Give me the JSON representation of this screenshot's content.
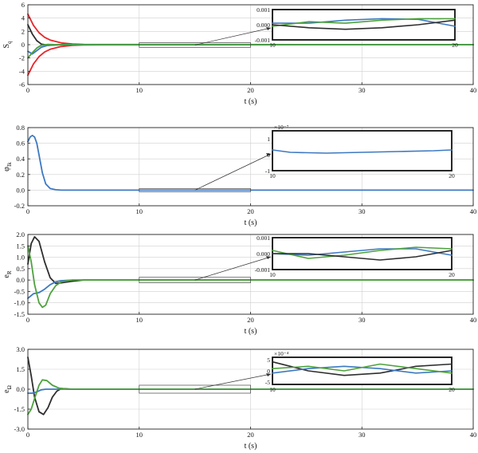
{
  "chart_data": [
    {
      "type": "line",
      "xlabel": "t (s)",
      "ylabel": "S",
      "ylabel_sub": "q",
      "xlim": [
        0,
        40
      ],
      "ylim": [
        -6,
        6
      ],
      "xticks": [
        "0",
        "10",
        "20",
        "30",
        "40"
      ],
      "yticks": [
        "6",
        "4",
        "2",
        "0",
        "-2",
        "-4",
        "-6"
      ],
      "grid": true,
      "series": [
        {
          "color": "#e8262b",
          "x": [
            0,
            0.5,
            1,
            1.5,
            2,
            3,
            4,
            5,
            40
          ],
          "values": [
            4.6,
            2.9,
            1.8,
            1.1,
            0.7,
            0.27,
            0.1,
            0.03,
            0
          ]
        },
        {
          "color": "#e8262b",
          "x": [
            0,
            0.5,
            1,
            1.5,
            2,
            3,
            4,
            5,
            40
          ],
          "values": [
            -4.6,
            -2.9,
            -1.8,
            -1.1,
            -0.7,
            -0.27,
            -0.1,
            -0.03,
            0
          ]
        },
        {
          "color": "#2e2e2e",
          "x": [
            0,
            0.4,
            0.8,
            1.2,
            1.8,
            2.5,
            3.5,
            40
          ],
          "values": [
            3.0,
            1.6,
            0.6,
            0.1,
            -0.1,
            -0.05,
            0,
            0
          ]
        },
        {
          "color": "#3d79c2",
          "x": [
            0,
            0.4,
            0.8,
            1.2,
            1.8,
            2.5,
            3.5,
            40
          ],
          "values": [
            -1.0,
            -1.4,
            -0.9,
            -0.4,
            -0.1,
            0,
            0,
            0
          ]
        },
        {
          "color": "#4da23d",
          "x": [
            0,
            0.4,
            0.8,
            1.2,
            1.8,
            2.5,
            3.5,
            40
          ],
          "values": [
            -2.0,
            -1.2,
            -0.5,
            -0.1,
            0.05,
            0,
            0,
            0
          ]
        }
      ],
      "zoom_x": [
        10,
        20
      ],
      "zoom_y": [
        -0.4,
        0.3
      ],
      "inset": {
        "xlim": [
          10,
          20
        ],
        "ylim": [
          -0.001,
          0.001
        ],
        "xticks": [
          "10",
          "20"
        ],
        "yticks": [
          "0.001",
          "0.000",
          "-0.001"
        ],
        "series": [
          {
            "color": "#3d79c2",
            "x": [
              10,
              12,
              14,
              16,
              18,
              20
            ],
            "values": [
              0.0001,
              0.0001,
              0.0003,
              0.0004,
              0.00035,
              -0.0001
            ]
          },
          {
            "color": "#4da23d",
            "x": [
              10,
              12,
              14,
              16,
              18,
              20
            ],
            "values": [
              -0.0001,
              0.0002,
              0.0001,
              0.0003,
              0.0004,
              0.0004
            ]
          },
          {
            "color": "#2e2e2e",
            "x": [
              10,
              12,
              14,
              16,
              18,
              20
            ],
            "values": [
              0,
              -0.0002,
              -0.0003,
              -0.0002,
              0,
              0.0003
            ]
          }
        ]
      }
    },
    {
      "type": "line",
      "xlabel": "t (s)",
      "ylabel": "φ",
      "ylabel_sub": "Ik",
      "xlim": [
        0,
        40
      ],
      "ylim": [
        -0.2,
        0.8
      ],
      "xticks": [
        "0",
        "10",
        "20",
        "30",
        "40"
      ],
      "yticks": [
        "0.8",
        "0.6",
        "0.4",
        "0.2",
        "0.0",
        "-0.2"
      ],
      "grid": true,
      "series": [
        {
          "color": "#3d79c2",
          "x": [
            0,
            0.2,
            0.4,
            0.6,
            0.8,
            1.0,
            1.3,
            1.6,
            2.0,
            2.5,
            3.0,
            40
          ],
          "values": [
            0.62,
            0.68,
            0.7,
            0.68,
            0.6,
            0.45,
            0.22,
            0.08,
            0.02,
            0.005,
            0,
            0
          ]
        }
      ],
      "zoom_x": [
        10,
        20
      ],
      "zoom_y": [
        -0.02,
        0.02
      ],
      "inset": {
        "xlim": [
          10,
          20
        ],
        "ylim": [
          -1,
          1.5
        ],
        "yexp": "×10⁻⁷",
        "xticks": [
          "10",
          "20"
        ],
        "yticks": [
          "1",
          "0",
          "-1"
        ],
        "series": [
          {
            "color": "#3d79c2",
            "x": [
              10,
              11,
              13,
              15,
              17,
              19,
              20
            ],
            "values": [
              0.3,
              0.15,
              0.1,
              0.15,
              0.2,
              0.25,
              0.3
            ]
          }
        ]
      }
    },
    {
      "type": "line",
      "xlabel": "t (s)",
      "ylabel": "e",
      "ylabel_sub": "R",
      "xlim": [
        0,
        40
      ],
      "ylim": [
        -1.5,
        2.0
      ],
      "xticks": [
        "0",
        "10",
        "20",
        "30",
        "40"
      ],
      "yticks": [
        "2.0",
        "1.5",
        "1.0",
        "0.5",
        "0.0",
        "-0.5",
        "-1.0",
        "-1.5"
      ],
      "grid": true,
      "series": [
        {
          "color": "#2e2e2e",
          "x": [
            0,
            0.3,
            0.6,
            1.0,
            1.5,
            2.0,
            2.5,
            3.0,
            4.0,
            5.0,
            40
          ],
          "values": [
            0.7,
            1.6,
            1.9,
            1.7,
            0.8,
            0.1,
            -0.15,
            -0.12,
            -0.05,
            0,
            0
          ]
        },
        {
          "color": "#3d79c2",
          "x": [
            0,
            0.5,
            1.0,
            1.5,
            2.0,
            2.5,
            3.0,
            4.0,
            5.0,
            40
          ],
          "values": [
            -0.8,
            -0.6,
            -0.55,
            -0.4,
            -0.2,
            -0.08,
            -0.03,
            0,
            0,
            0
          ]
        },
        {
          "color": "#4da23d",
          "x": [
            0,
            0.3,
            0.6,
            1.0,
            1.3,
            1.6,
            2.0,
            2.5,
            3.0,
            4.0,
            5.0,
            40
          ],
          "values": [
            1.5,
            0.8,
            -0.2,
            -1.0,
            -1.2,
            -1.1,
            -0.6,
            -0.25,
            -0.08,
            0,
            0,
            0
          ]
        }
      ],
      "zoom_x": [
        10,
        20
      ],
      "zoom_y": [
        -0.12,
        0.12
      ],
      "inset": {
        "xlim": [
          10,
          20
        ],
        "ylim": [
          -0.001,
          0.001
        ],
        "xticks": [
          "10",
          "20"
        ],
        "yticks": [
          "0.001",
          "0.000",
          "-0.001"
        ],
        "series": [
          {
            "color": "#3d79c2",
            "x": [
              10,
              12,
              14,
              16,
              18,
              20
            ],
            "values": [
              0,
              -0.0001,
              0.0001,
              0.0003,
              0.0003,
              -0.0001
            ]
          },
          {
            "color": "#4da23d",
            "x": [
              10,
              12,
              14,
              16,
              18,
              20
            ],
            "values": [
              0.0002,
              -0.0003,
              -0.0001,
              0.0002,
              0.0004,
              0.0003
            ]
          },
          {
            "color": "#2e2e2e",
            "x": [
              10,
              12,
              14,
              16,
              18,
              20
            ],
            "values": [
              0,
              0,
              -0.0002,
              -0.0004,
              -0.0002,
              0.0002
            ]
          }
        ]
      }
    },
    {
      "type": "line",
      "xlabel": "t (s)",
      "ylabel": "e",
      "ylabel_sub": "Ω",
      "xlim": [
        0,
        40
      ],
      "ylim": [
        -3.0,
        3.0
      ],
      "xticks": [
        "0",
        "10",
        "20",
        "30",
        "40"
      ],
      "yticks": [
        "3.0",
        "1.5",
        "0.0",
        "-1.5",
        "-3.0"
      ],
      "grid": true,
      "series": [
        {
          "color": "#2e2e2e",
          "x": [
            0,
            0.3,
            0.6,
            1.0,
            1.4,
            1.8,
            2.2,
            2.6,
            3.0,
            4.0,
            5.0,
            40
          ],
          "values": [
            2.4,
            1.0,
            -0.6,
            -1.7,
            -1.9,
            -1.4,
            -0.6,
            -0.15,
            0.05,
            0,
            0,
            0
          ]
        },
        {
          "color": "#3d79c2",
          "x": [
            0,
            0.4,
            0.8,
            1.2,
            1.6,
            2.0,
            3.0,
            40
          ],
          "values": [
            -0.3,
            -0.3,
            -0.2,
            -0.05,
            0,
            0,
            0,
            0
          ]
        },
        {
          "color": "#4da23d",
          "x": [
            0,
            0.3,
            0.6,
            1.0,
            1.3,
            1.7,
            2.2,
            2.8,
            3.5,
            4.5,
            40
          ],
          "values": [
            -1.9,
            -1.5,
            -0.7,
            0.3,
            0.7,
            0.65,
            0.3,
            0.08,
            0,
            0,
            0
          ]
        }
      ],
      "zoom_x": [
        10,
        20
      ],
      "zoom_y": [
        -0.3,
        0.3
      ],
      "inset": {
        "xlim": [
          10,
          20
        ],
        "ylim": [
          -6,
          6
        ],
        "yexp": "×10⁻⁴",
        "xticks": [
          "10",
          "20"
        ],
        "yticks": [
          "5",
          "0",
          "-5"
        ],
        "series": [
          {
            "color": "#2e2e2e",
            "x": [
              10,
              12,
              14,
              16,
              18,
              20
            ],
            "values": [
              4,
              0,
              -2,
              -1,
              2,
              3
            ]
          },
          {
            "color": "#3d79c2",
            "x": [
              10,
              12,
              14,
              16,
              18,
              20
            ],
            "values": [
              -1,
              1,
              2,
              1,
              -1,
              0
            ]
          },
          {
            "color": "#4da23d",
            "x": [
              10,
              12,
              14,
              16,
              18,
              20
            ],
            "values": [
              1,
              2,
              0,
              3,
              1,
              -1
            ]
          }
        ]
      }
    }
  ]
}
